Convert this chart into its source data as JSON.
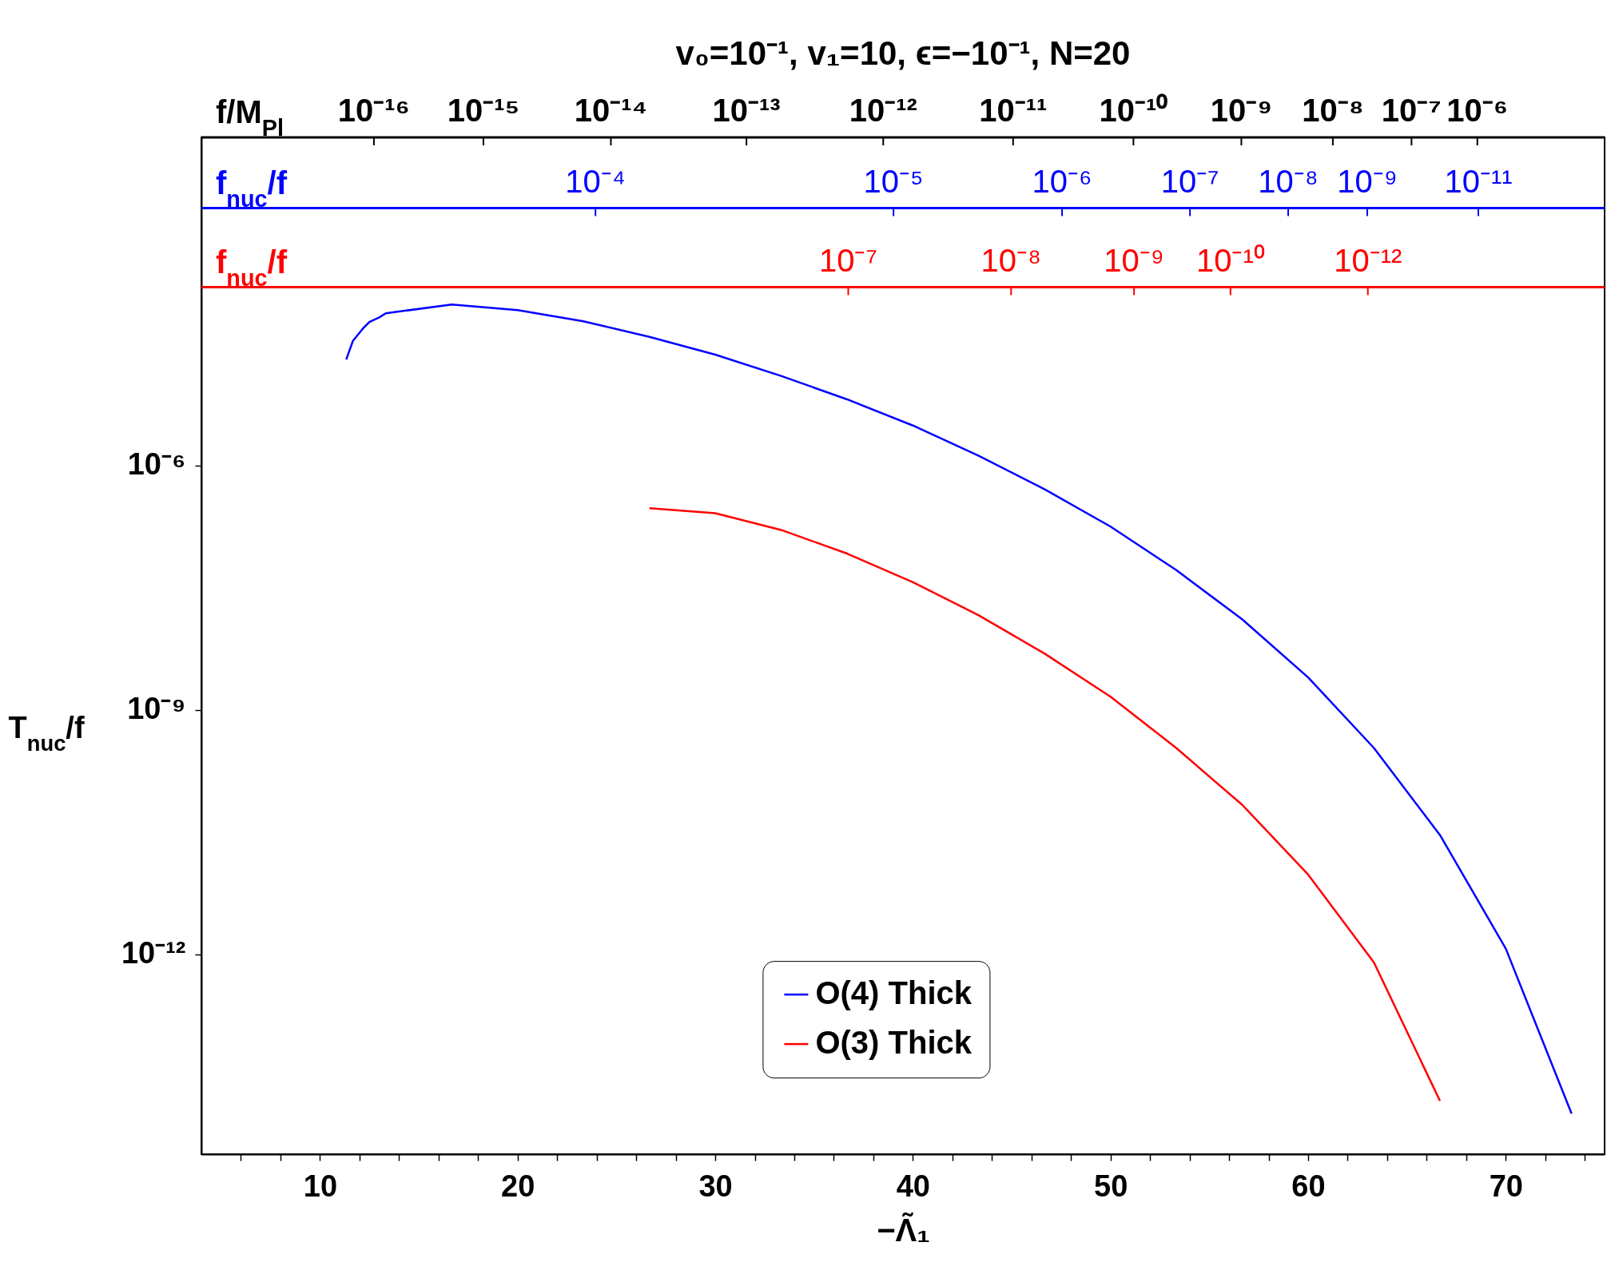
{
  "chart_data": {
    "type": "line",
    "title": "v₀=10⁻¹, v₁=10, ϵ=−10⁻¹, N=20",
    "xlabel": "−Λ̃₁",
    "ylabel": "T$_{nuc}$/f",
    "x": [
      11.33,
      11.67,
      12.17,
      12.5,
      13.0,
      13.33,
      16.67,
      20,
      23.33,
      26.67,
      30,
      33.33,
      36.67,
      40,
      43.33,
      46.67,
      50,
      53.33,
      56.67,
      60,
      63.33,
      66.67,
      70,
      73.33
    ],
    "series": [
      {
        "name": "O(4) Thick",
        "color": "#0000ff",
        "values": [
          2e-05,
          3.4e-05,
          4.8e-05,
          5.8e-05,
          6.6e-05,
          7.4e-05,
          9.5e-05,
          8.1e-05,
          5.9e-05,
          3.8e-05,
          2.3e-05,
          1.26e-05,
          6.5e-06,
          3.1e-06,
          1.32e-06,
          5.1e-07,
          1.78e-07,
          5.2e-08,
          1.29e-08,
          2.5e-09,
          3.4e-10,
          2.9e-11,
          1.17e-12,
          1.1e-14
        ]
      },
      {
        "name": "O(3) Thick",
        "color": "#ff0000",
        "x": [
          26.67,
          30,
          33.33,
          36.67,
          40,
          43.33,
          46.67,
          50,
          53.33,
          56.67,
          60,
          63.33,
          66.67
        ],
        "values": [
          3e-07,
          2.6e-07,
          1.62e-07,
          8.3e-08,
          3.7e-08,
          1.45e-08,
          4.9e-09,
          1.45e-09,
          3.4e-10,
          6.8e-11,
          9.5e-12,
          7.9e-13,
          1.58e-14
        ]
      }
    ],
    "xlim": [
      4,
      75
    ],
    "xticks": [
      {
        "value": 6,
        "label": null
      },
      {
        "value": 8,
        "label": null
      },
      10,
      {
        "value": 12,
        "label": null
      },
      {
        "value": 14,
        "label": null
      },
      {
        "value": 16,
        "label": null
      },
      {
        "value": 18,
        "label": null
      },
      20,
      {
        "value": 22,
        "label": null
      },
      {
        "value": 24,
        "label": null
      },
      {
        "value": 26,
        "label": null
      },
      {
        "value": 28,
        "label": null
      },
      30,
      {
        "value": 32,
        "label": null
      },
      {
        "value": 34,
        "label": null
      },
      {
        "value": 36,
        "label": null
      },
      {
        "value": 38,
        "label": null
      },
      40,
      {
        "value": 42,
        "label": null
      },
      {
        "value": 44,
        "label": null
      },
      {
        "value": 46,
        "label": null
      },
      {
        "value": 48,
        "label": null
      },
      50,
      {
        "value": 52,
        "label": null
      },
      {
        "value": 54,
        "label": null
      },
      {
        "value": 56,
        "label": null
      },
      {
        "value": 58,
        "label": null
      },
      60,
      {
        "value": 62,
        "label": null
      },
      {
        "value": 64,
        "label": null
      },
      {
        "value": 66,
        "label": null
      },
      {
        "value": 68,
        "label": null
      },
      70,
      {
        "value": 72,
        "label": null
      },
      {
        "value": 74,
        "label": null
      }
    ],
    "ylim": [
      3.5e-15,
      0.0107
    ],
    "yticks": [
      {
        "value": 1e-06,
        "label": "10⁻⁶"
      },
      {
        "value": 1e-09,
        "label": "10⁻⁹"
      },
      {
        "value": 1e-12,
        "label": "10⁻¹²"
      }
    ],
    "log": "y",
    "ref_lines": [
      {
        "axis": "y",
        "value": 0.0107,
        "label": "f/M$_{Pl}$",
        "color": "#000000"
      },
      {
        "axis": "y",
        "value": 0.00145,
        "label": "f$_{nuc}$/f",
        "color": "#0000ff"
      },
      {
        "axis": "y",
        "value": 0.000155,
        "label": "f$_{nuc}$/f",
        "color": "#ff0000"
      }
    ],
    "annotations": [
      {
        "text": "10⁻¹⁶",
        "x": 12.73,
        "y": 0.0107
      },
      {
        "text": "10⁻¹⁵",
        "x": 18.27,
        "y": 0.0107
      },
      {
        "text": "10⁻¹⁴",
        "x": 24.72,
        "y": 0.0107
      },
      {
        "text": "10⁻¹³",
        "x": 31.58,
        "y": 0.0107
      },
      {
        "text": "10⁻¹²",
        "x": 38.5,
        "y": 0.0107
      },
      {
        "text": "10⁻¹¹",
        "x": 45.07,
        "y": 0.0107
      },
      {
        "text": "10⁻¹⁰",
        "x": 51.16,
        "y": 0.0107
      },
      {
        "text": "10⁻⁹",
        "x": 56.62,
        "y": 0.0107
      },
      {
        "text": "10⁻⁸",
        "x": 61.25,
        "y": 0.0107
      },
      {
        "text": "10⁻⁷",
        "x": 65.23,
        "y": 0.0107
      },
      {
        "text": "10⁻⁶",
        "x": 68.56,
        "y": 0.0107
      },
      {
        "text": "10⁻⁴",
        "x": 23.94,
        "y": 0.00145
      },
      {
        "text": "10⁻⁵",
        "x": 39.02,
        "y": 0.00145
      },
      {
        "text": "10⁻⁶",
        "x": 47.55,
        "y": 0.00145
      },
      {
        "text": "10⁻⁷",
        "x": 54.02,
        "y": 0.00145
      },
      {
        "text": "10⁻⁸",
        "x": 58.99,
        "y": 0.00145
      },
      {
        "text": "10⁻⁹",
        "x": 62.99,
        "y": 0.00145
      },
      {
        "text": "10⁻¹¹",
        "x": 68.61,
        "y": 0.00145
      },
      {
        "text": "10⁻⁷",
        "x": 36.73,
        "y": 0.000155
      },
      {
        "text": "10⁻⁸",
        "x": 44.97,
        "y": 0.000155
      },
      {
        "text": "10⁻⁹",
        "x": 51.19,
        "y": 0.000155
      },
      {
        "text": "10⁻¹⁰",
        "x": 56.07,
        "y": 0.000155
      },
      {
        "text": "10⁻¹²",
        "x": 63.02,
        "y": 0.000155
      }
    ],
    "legend": "bottom",
    "grid": false,
    "marker": "none",
    "line_style": "solid"
  }
}
